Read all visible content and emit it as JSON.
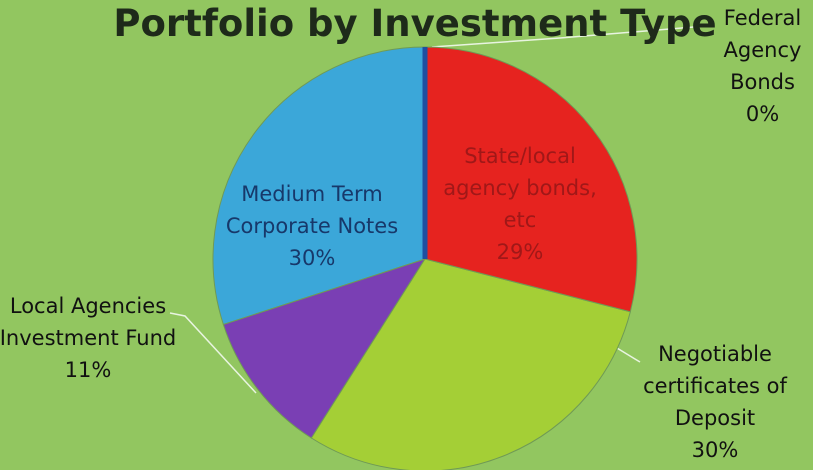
{
  "chart_data": {
    "type": "pie",
    "title": "Portfolio by Investment Type",
    "categories": [
      "Federal Agency Bonds",
      "State/local agency bonds, etc",
      "Negotiable certificates of Deposit",
      "Local Agencies Investment Fund",
      "Medium Term Corporate Notes"
    ],
    "values": [
      0,
      29,
      30,
      11,
      30
    ],
    "value_labels": [
      "0%",
      "29%",
      "30%",
      "11%",
      "30%"
    ],
    "colors": [
      "#1f4fa0",
      "#e6231f",
      "#a4cf36",
      "#7a3fb4",
      "#3ba7d9"
    ]
  }
}
